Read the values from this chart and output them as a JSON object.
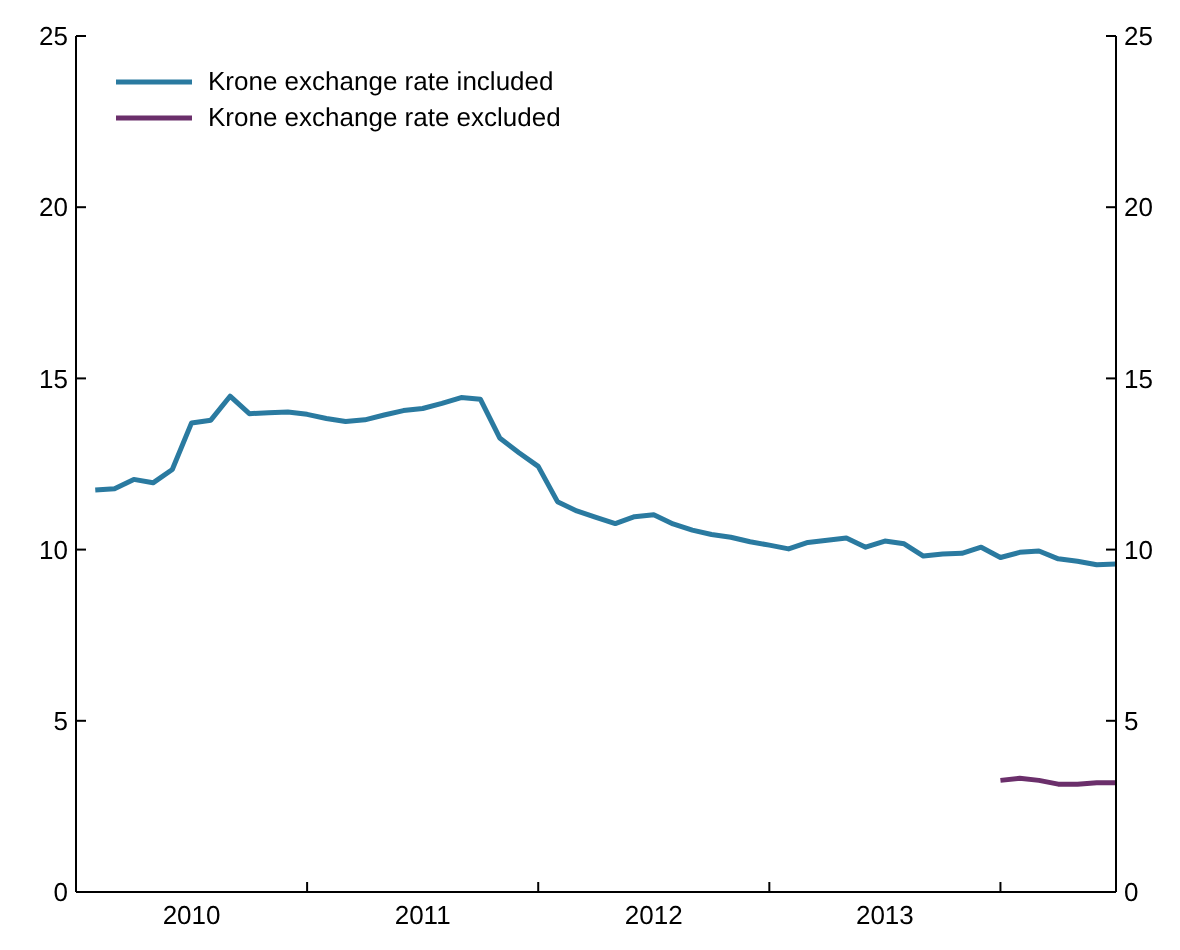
{
  "chart_data": {
    "type": "line",
    "x": [
      "2010-02",
      "2010-03",
      "2010-04",
      "2010-05",
      "2010-06",
      "2010-07",
      "2010-08",
      "2010-09",
      "2010-10",
      "2010-11",
      "2010-12",
      "2011-01",
      "2011-02",
      "2011-03",
      "2011-04",
      "2011-05",
      "2011-06",
      "2011-07",
      "2011-08",
      "2011-09",
      "2011-10",
      "2011-11",
      "2011-12",
      "2012-01",
      "2012-02",
      "2012-03",
      "2012-04",
      "2012-05",
      "2012-06",
      "2012-07",
      "2012-08",
      "2012-09",
      "2012-10",
      "2012-11",
      "2012-12",
      "2013-01",
      "2013-02",
      "2013-03",
      "2013-04",
      "2013-05",
      "2013-06",
      "2013-07",
      "2013-08",
      "2013-09",
      "2013-10",
      "2013-11",
      "2013-12",
      "2014-01",
      "2014-02",
      "2014-03",
      "2014-04",
      "2014-05",
      "2014-06",
      "2014-07"
    ],
    "series": [
      {
        "name": "Krone exchange rate included",
        "color": "#2a7aa0",
        "values": [
          11.74,
          11.78,
          12.05,
          11.95,
          12.34,
          13.7,
          13.78,
          14.48,
          13.97,
          14.0,
          14.02,
          13.95,
          13.83,
          13.74,
          13.79,
          13.93,
          14.06,
          14.12,
          14.27,
          14.44,
          14.39,
          13.26,
          12.83,
          12.43,
          11.4,
          11.13,
          10.94,
          10.76,
          10.96,
          11.02,
          10.75,
          10.57,
          10.44,
          10.36,
          10.23,
          10.13,
          10.02,
          10.21,
          10.27,
          10.34,
          10.07,
          10.25,
          10.17,
          9.81,
          9.87,
          9.89,
          10.07,
          9.77,
          9.92,
          9.96,
          9.73,
          9.66,
          9.56,
          9.58
        ]
      },
      {
        "name": "Krone exchange rate excluded",
        "color": "#6b2f6b",
        "x": [
          "2014-01",
          "2014-02",
          "2014-03",
          "2014-04",
          "2014-05",
          "2014-06",
          "2014-07"
        ],
        "values": [
          3.26,
          3.32,
          3.26,
          3.15,
          3.15,
          3.19,
          3.19
        ]
      }
    ],
    "xlim": [
      "2010-01",
      "2014-07"
    ],
    "xticks": [
      {
        "value": "2010-07",
        "label": "2010"
      },
      {
        "value": "2011-01",
        "label": null
      },
      {
        "value": "2011-07",
        "label": "2011"
      },
      {
        "value": "2012-01",
        "label": null
      },
      {
        "value": "2012-07",
        "label": "2012"
      },
      {
        "value": "2013-01",
        "label": null
      },
      {
        "value": "2013-07",
        "label": "2013"
      },
      {
        "value": "2014-01",
        "label": null
      }
    ],
    "ylim": [
      0,
      25
    ],
    "yticks": [
      0,
      5,
      10,
      15,
      20,
      25
    ],
    "y2lim": [
      0,
      25
    ],
    "y2ticks": [
      0,
      5,
      10,
      15,
      20,
      25
    ],
    "legend": "top left",
    "grid": false
  }
}
